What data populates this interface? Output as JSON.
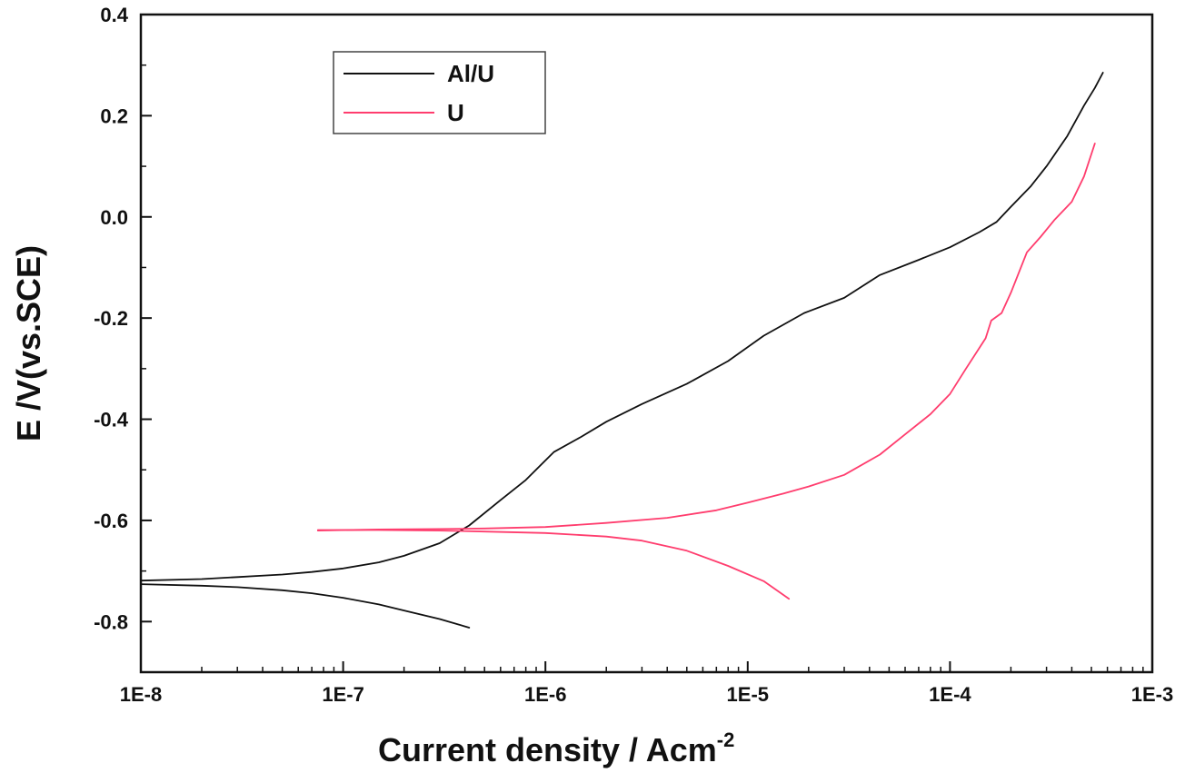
{
  "chart_data": {
    "type": "line",
    "xlabel": "Current density / Acm",
    "xlabel_sup": "-2",
    "ylabel": "E /V(vs.SCE)",
    "xscale": "log",
    "xlim": [
      1e-08,
      0.001
    ],
    "ylim": [
      -0.9,
      0.4
    ],
    "x_ticks": [
      1e-08,
      1e-07,
      1e-06,
      1e-05,
      0.0001,
      0.001
    ],
    "x_tick_labels": [
      "1E-8",
      "1E-7",
      "1E-6",
      "1E-5",
      "1E-4",
      "1E-3"
    ],
    "y_ticks": [
      -0.8,
      -0.6,
      -0.4,
      -0.2,
      0.0,
      0.2,
      0.4
    ],
    "y_tick_labels": [
      "-0.8",
      "-0.6",
      "-0.4",
      "-0.2",
      "0.0",
      "0.2",
      "0.4"
    ],
    "grid": false,
    "legend_position": "top-left",
    "series": [
      {
        "name": "Al/U",
        "color": "#111111",
        "branches": [
          {
            "x": [
              4.2e-07,
              3e-07,
              2e-07,
              1.5e-07,
              1e-07,
              7e-08,
              5e-08,
              3e-08,
              2e-08,
              1e-08
            ],
            "y": [
              -0.812,
              -0.795,
              -0.778,
              -0.766,
              -0.753,
              -0.744,
              -0.738,
              -0.732,
              -0.729,
              -0.726
            ]
          },
          {
            "x": [
              1e-08,
              2e-08,
              3e-08,
              5e-08,
              7e-08,
              1e-07,
              1.5e-07,
              2e-07,
              3e-07,
              4.2e-07,
              6e-07,
              8e-07,
              1.1e-06,
              1.5e-06,
              2e-06,
              3e-06,
              5e-06,
              8e-06,
              1.2e-05,
              1.9e-05,
              3e-05,
              4.5e-05,
              7e-05,
              0.0001,
              0.00014,
              0.00017,
              0.0002,
              0.00025,
              0.0003,
              0.00038,
              0.00046,
              0.00052,
              0.00057
            ],
            "y": [
              -0.719,
              -0.716,
              -0.712,
              -0.707,
              -0.702,
              -0.695,
              -0.683,
              -0.67,
              -0.645,
              -0.61,
              -0.56,
              -0.52,
              -0.465,
              -0.435,
              -0.405,
              -0.37,
              -0.33,
              -0.285,
              -0.235,
              -0.19,
              -0.16,
              -0.115,
              -0.085,
              -0.06,
              -0.03,
              -0.01,
              0.02,
              0.06,
              0.1,
              0.16,
              0.22,
              0.255,
              0.285
            ]
          }
        ]
      },
      {
        "name": "U",
        "color": "#ff3d6e",
        "branches": [
          {
            "x": [
              1.6e-05,
              1.2e-05,
              8e-06,
              5e-06,
              3e-06,
              2e-06,
              1e-06,
              5e-07,
              3e-07,
              1.5e-07,
              7.5e-08
            ],
            "y": [
              -0.755,
              -0.72,
              -0.69,
              -0.66,
              -0.64,
              -0.632,
              -0.625,
              -0.622,
              -0.62,
              -0.619,
              -0.619
            ]
          },
          {
            "x": [
              7.5e-08,
              1.5e-07,
              3e-07,
              5e-07,
              1e-06,
              2e-06,
              4e-06,
              7e-06,
              1e-05,
              1.5e-05,
              2e-05,
              3e-05,
              4.5e-05,
              6e-05,
              8e-05,
              0.0001,
              0.00012,
              0.00015,
              0.00016,
              0.00018,
              0.0002,
              0.00024,
              0.00028,
              0.00033,
              0.0004,
              0.00046,
              0.00052
            ],
            "y": [
              -0.62,
              -0.618,
              -0.617,
              -0.616,
              -0.613,
              -0.605,
              -0.595,
              -0.58,
              -0.565,
              -0.547,
              -0.533,
              -0.51,
              -0.47,
              -0.43,
              -0.39,
              -0.35,
              -0.3,
              -0.24,
              -0.205,
              -0.19,
              -0.15,
              -0.07,
              -0.04,
              -0.005,
              0.03,
              0.08,
              0.145
            ]
          }
        ]
      }
    ]
  }
}
